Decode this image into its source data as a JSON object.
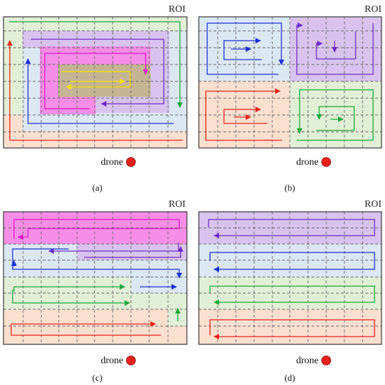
{
  "roi_label": "ROI",
  "drone_label": "drone",
  "drone_color": "#e8201c",
  "panels": [
    {
      "id": "a",
      "caption": "(a)"
    },
    {
      "id": "b",
      "caption": "(b)"
    },
    {
      "id": "c",
      "caption": "(c)"
    },
    {
      "id": "d",
      "caption": "(d)"
    }
  ],
  "colors": {
    "red": "#e8231e",
    "blue": "#1a2fd6",
    "purple": "#6e2bc9",
    "green": "#1aa83a",
    "magenta": "#e018c6",
    "yellow": "#f5e000",
    "fill_peach": "#fbdfcf",
    "fill_lightblue": "#dce7f4",
    "fill_lavender": "#d9c3ee",
    "fill_mint": "#e1efd6",
    "fill_magenta": "#f68ee8",
    "fill_olive": "#c4b493"
  }
}
